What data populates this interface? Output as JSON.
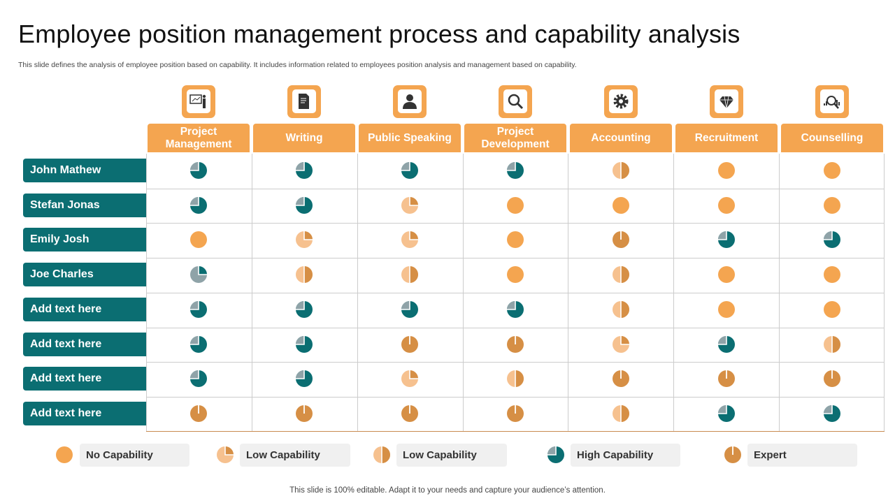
{
  "title": "Employee position management process and capability analysis",
  "subtitle": "This slide defines the analysis of employee position based on capability.  It includes information related to employees position analysis and management based on capability.",
  "colors": {
    "accent": "#F4A550",
    "teal": "#0B6E72",
    "light": "#F6C18F",
    "dark": "#D68F45",
    "grey": "#8FA3A8"
  },
  "columns": [
    {
      "label": "Project Management",
      "icon": "presentation-icon"
    },
    {
      "label": "Writing",
      "icon": "document-icon"
    },
    {
      "label": "Public Speaking",
      "icon": "person-icon"
    },
    {
      "label": "Project Development",
      "icon": "magnifier-icon"
    },
    {
      "label": "Accounting",
      "icon": "gear-icon"
    },
    {
      "label": "Recruitment",
      "icon": "diamond-icon"
    },
    {
      "label": "Counselling",
      "icon": "analytics-icon"
    }
  ],
  "rows": [
    {
      "name": "John Mathew",
      "levels": [
        "high",
        "high",
        "high",
        "high",
        "low-half",
        "none",
        "none"
      ]
    },
    {
      "name": "Stefan Jonas",
      "levels": [
        "high",
        "high",
        "low-quarter",
        "none",
        "none",
        "none",
        "none"
      ]
    },
    {
      "name": "Emily Josh",
      "levels": [
        "none",
        "low-quarter",
        "low-quarter",
        "none",
        "expert",
        "high",
        "high"
      ]
    },
    {
      "name": "Joe Charles",
      "levels": [
        "teal-quarter",
        "low-half",
        "low-half",
        "none",
        "low-half",
        "none",
        "none"
      ]
    },
    {
      "name": "Add text here",
      "levels": [
        "high",
        "high",
        "high",
        "high",
        "low-half",
        "none",
        "none"
      ]
    },
    {
      "name": "Add text here",
      "levels": [
        "high",
        "high",
        "expert",
        "expert",
        "low-quarter",
        "high",
        "low-half"
      ]
    },
    {
      "name": "Add text here",
      "levels": [
        "high",
        "high",
        "low-quarter",
        "low-half",
        "expert",
        "expert",
        "expert"
      ]
    },
    {
      "name": "Add text here",
      "levels": [
        "expert",
        "expert",
        "expert",
        "expert",
        "low-half",
        "high",
        "high"
      ]
    }
  ],
  "legend": [
    {
      "level": "none",
      "label": "No Capability"
    },
    {
      "level": "low-quarter",
      "label": "Low Capability"
    },
    {
      "level": "low-half",
      "label": "Low Capability"
    },
    {
      "level": "high",
      "label": "High Capability"
    },
    {
      "level": "expert",
      "label": "Expert"
    }
  ],
  "footer": "This slide is 100% editable. Adapt it to your needs and capture your audience’s attention."
}
